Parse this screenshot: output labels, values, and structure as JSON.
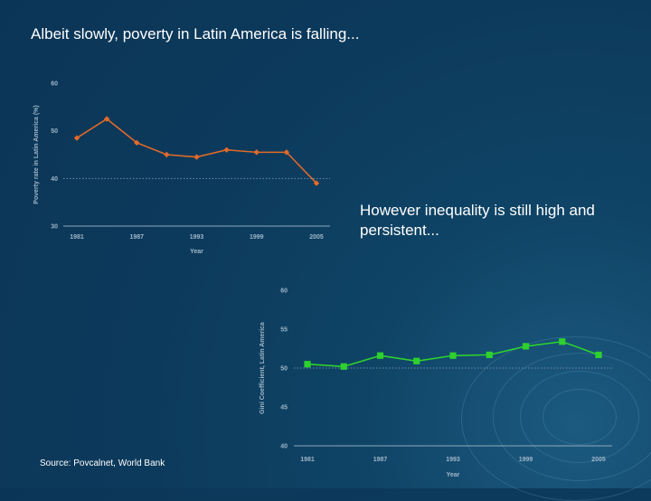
{
  "slide": {
    "title": "Albeit slowly, poverty in Latin America is falling...",
    "note": "However inequality is still high and persistent...",
    "source": "Source: Povcalnet, World Bank"
  },
  "colors": {
    "poverty": "#e06a2a",
    "gini": "#2ed12e",
    "axis": "#8da8bd",
    "ref": "#6f8ea6"
  },
  "chart_data": [
    {
      "type": "line",
      "id": "poverty",
      "title": "",
      "xlabel": "Year",
      "ylabel": "Poverty rate in Latin America (%)",
      "x": [
        1981,
        1984,
        1987,
        1990,
        1993,
        1996,
        1999,
        2002,
        2005
      ],
      "x_tick_labels": [
        "1981",
        "1987",
        "1993",
        "1999",
        "2005"
      ],
      "x_tick_values": [
        1981,
        1987,
        1993,
        1999,
        2005
      ],
      "y_tick_labels": [
        "60",
        "50",
        "40",
        "30"
      ],
      "y_tick_values": [
        60,
        50,
        40,
        30
      ],
      "ylim": [
        30,
        60
      ],
      "ref_line": 40,
      "series": [
        {
          "values": [
            48.5,
            52.5,
            47.5,
            45.0,
            44.5,
            46.0,
            45.5,
            45.5,
            39.0
          ]
        }
      ]
    },
    {
      "type": "line",
      "id": "gini",
      "title": "",
      "xlabel": "Year",
      "ylabel": "Gini Coefficient, Latin America",
      "x": [
        1981,
        1984,
        1987,
        1990,
        1993,
        1996,
        1999,
        2002,
        2005
      ],
      "x_tick_labels": [
        "1981",
        "1987",
        "1993",
        "1999",
        "2005"
      ],
      "x_tick_values": [
        1981,
        1987,
        1993,
        1999,
        2005
      ],
      "y_tick_labels": [
        "60",
        "55",
        "50",
        "45",
        "40"
      ],
      "y_tick_values": [
        60,
        55,
        50,
        45,
        40
      ],
      "ylim": [
        40,
        60
      ],
      "ref_line": 50,
      "series": [
        {
          "values": [
            50.5,
            50.2,
            51.6,
            50.9,
            51.6,
            51.7,
            52.8,
            53.4,
            51.7
          ]
        }
      ]
    }
  ]
}
